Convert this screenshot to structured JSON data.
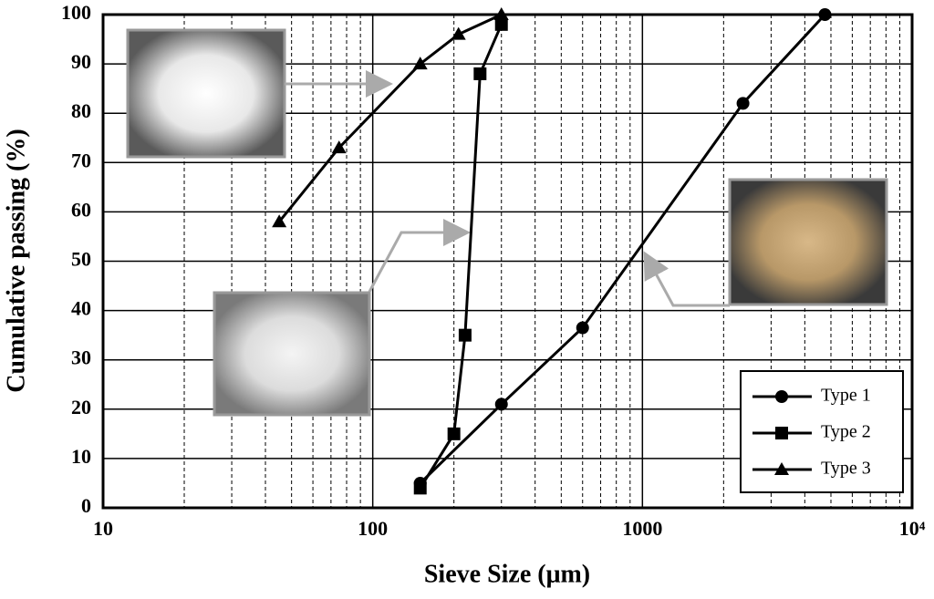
{
  "chart_data": {
    "type": "line",
    "x_label": "Sieve Size  (μm)",
    "y_label": "Cumulative passing (%)",
    "x_log": true,
    "grid": true,
    "legend": "lower right",
    "xlim": [
      10,
      10000
    ],
    "ylim": [
      0,
      100
    ],
    "xticks": [
      10,
      100,
      1000,
      {
        "value": 10000,
        "label": "10⁴"
      }
    ],
    "xminorticks": [
      20,
      30,
      40,
      50,
      60,
      70,
      80,
      90,
      200,
      300,
      400,
      500,
      600,
      700,
      800,
      900,
      2000,
      3000,
      4000,
      5000,
      6000,
      7000,
      8000,
      9000
    ],
    "yticks": [
      0,
      10,
      20,
      30,
      40,
      50,
      60,
      70,
      80,
      90,
      100
    ],
    "series": [
      {
        "name": "Type 1",
        "color": "#000000",
        "marker": "circle",
        "x": [
          150,
          300,
          600,
          2360,
          4750
        ],
        "values": [
          5,
          21,
          36.5,
          82,
          100
        ]
      },
      {
        "name": "Type 2",
        "color": "#000000",
        "marker": "square",
        "x": [
          150,
          200,
          220,
          250,
          300
        ],
        "values": [
          4,
          15,
          35,
          88,
          98
        ]
      },
      {
        "name": "Type 3",
        "color": "#000000",
        "marker": "triangle",
        "x": [
          45,
          75,
          150,
          208,
          300
        ],
        "values": [
          58,
          73,
          90,
          96,
          100
        ]
      }
    ]
  }
}
